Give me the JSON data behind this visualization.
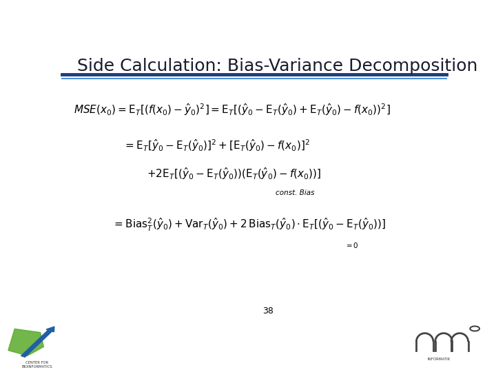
{
  "title": "Side Calculation: Bias-Variance Decomposition",
  "title_color": "#1a1a2e",
  "title_fontsize": 18,
  "header_line_color": "#1f3d7a",
  "header_line_color2": "#4a90d9",
  "bg_color": "#ffffff",
  "page_number": "38",
  "text_color": "#000000",
  "label_const_bias": "const. Bias",
  "label_zero": "=0"
}
